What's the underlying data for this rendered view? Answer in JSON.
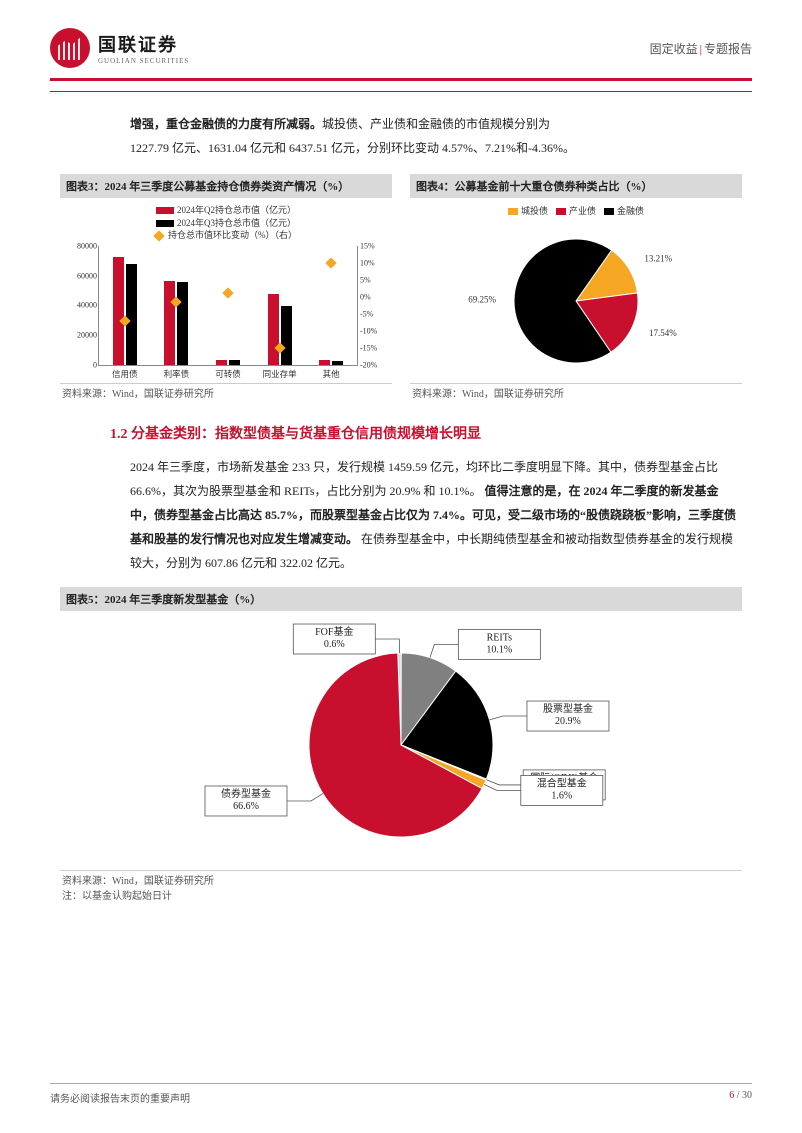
{
  "header": {
    "logo_cn": "国联证券",
    "logo_en": "GUOLIAN SECURITIES",
    "category_left": "固定收益",
    "category_right": "专题报告"
  },
  "intro": {
    "line1_prefix_bold": "增强，重仓金融债的力度有所减弱。",
    "line1_rest": "城投债、产业债和金融债的市值规模分别为",
    "line2": "1227.79 亿元、1631.04 亿元和 6437.51 亿元，分别环比变动 4.57%、7.21%和-4.36%。"
  },
  "chart3": {
    "title": "图表3：2024 年三季度公募基金持仓债券类资产情况（%）",
    "source": "资料来源：Wind，国联证券研究所",
    "type": "bar+marker",
    "legend": {
      "q2": {
        "label": "2024年Q2持仓总市值（亿元）",
        "color": "#c8102e"
      },
      "q3": {
        "label": "2024年Q3持仓总市值（亿元）",
        "color": "#000000"
      },
      "chg": {
        "label": "持仓总市值环比变动（%）（右）",
        "color": "#f5a623"
      }
    },
    "categories": [
      "信用债",
      "利率债",
      "可转债",
      "同业存单",
      "其他"
    ],
    "q2_values": [
      72000,
      56000,
      3500,
      47000,
      3000
    ],
    "q3_values": [
      67000,
      55000,
      3200,
      39000,
      2800
    ],
    "chg_values": [
      -7.0,
      -1.5,
      1.0,
      -15.0,
      10.0
    ],
    "yaxis_left": {
      "min": 0,
      "max": 80000,
      "step": 20000
    },
    "yaxis_right": {
      "min": -20,
      "max": 15,
      "step": 5
    },
    "bar_width": 0.35,
    "background_color": "#ffffff",
    "grid_color": "#e0e0e0",
    "label_fontsize": 8.5
  },
  "chart4": {
    "title": "图表4：公募基金前十大重仓债券种类占比（%）",
    "source": "资料来源：Wind，国联证券研究所",
    "type": "pie",
    "slices": [
      {
        "label": "城投债",
        "value": 13.21,
        "color": "#f5a623",
        "text": "13.21%"
      },
      {
        "label": "产业债",
        "value": 17.54,
        "color": "#c8102e",
        "text": "17.54%"
      },
      {
        "label": "金融债",
        "value": 69.25,
        "color": "#000000",
        "text": "69.25%"
      }
    ],
    "start_angle": -55,
    "label_fontsize": 9
  },
  "section12": {
    "heading": "1.2 分基金类别：指数型债基与货基重仓信用债规模增长明显",
    "p1a": "2024 年三季度，市场新发基金 233 只，发行规模 1459.59 亿元，均环比二季度明显下降。其中，债券型基金占比 66.6%，其次为股票型基金和 REITs，占比分别为 20.9% 和 10.1%。",
    "p1b_bold": "值得注意的是，在 2024 年二季度的新发基金中，债券型基金占比高达 85.7%，而股票型基金占比仅为 7.4%。可见，受二级市场的“股债跷跷板”影响，三季度债基和股基的发行情况也对应发生增减变动。",
    "p1c": "在债券型基金中，中长期纯债型基金和被动指数型债券基金的发行规模较大，分别为 607.86 亿元和 322.02 亿元。"
  },
  "chart5": {
    "title": "图表5：2024 年三季度新发型基金（%）",
    "source": "资料来源：Wind，国联证券研究所",
    "note": "注：以基金认购起始日计",
    "type": "pie",
    "slices": [
      {
        "label": "FOF基金",
        "value": 0.6,
        "color": "#d9d9d9",
        "text": "FOF基金\n0.6%"
      },
      {
        "label": "REITs",
        "value": 10.1,
        "color": "#808080",
        "text": "REITs\n10.1%"
      },
      {
        "label": "股票型基金",
        "value": 20.9,
        "color": "#000000",
        "text": "股票型基金\n20.9%"
      },
      {
        "label": "国际(QDII)基金",
        "value": 0.2,
        "color": "#404040",
        "text": "国际(QDII)基金\n0.2%"
      },
      {
        "label": "混合型基金",
        "value": 1.6,
        "color": "#f5a623",
        "text": "混合型基金\n1.6%"
      },
      {
        "label": "债券型基金",
        "value": 66.6,
        "color": "#c8102e",
        "text": "债券型基金\n66.6%"
      }
    ],
    "start_angle": -92,
    "label_fontsize": 10
  },
  "footer": {
    "disclaimer": "请务必阅读报告末页的重要声明",
    "page_current": "6",
    "page_total": "30"
  }
}
